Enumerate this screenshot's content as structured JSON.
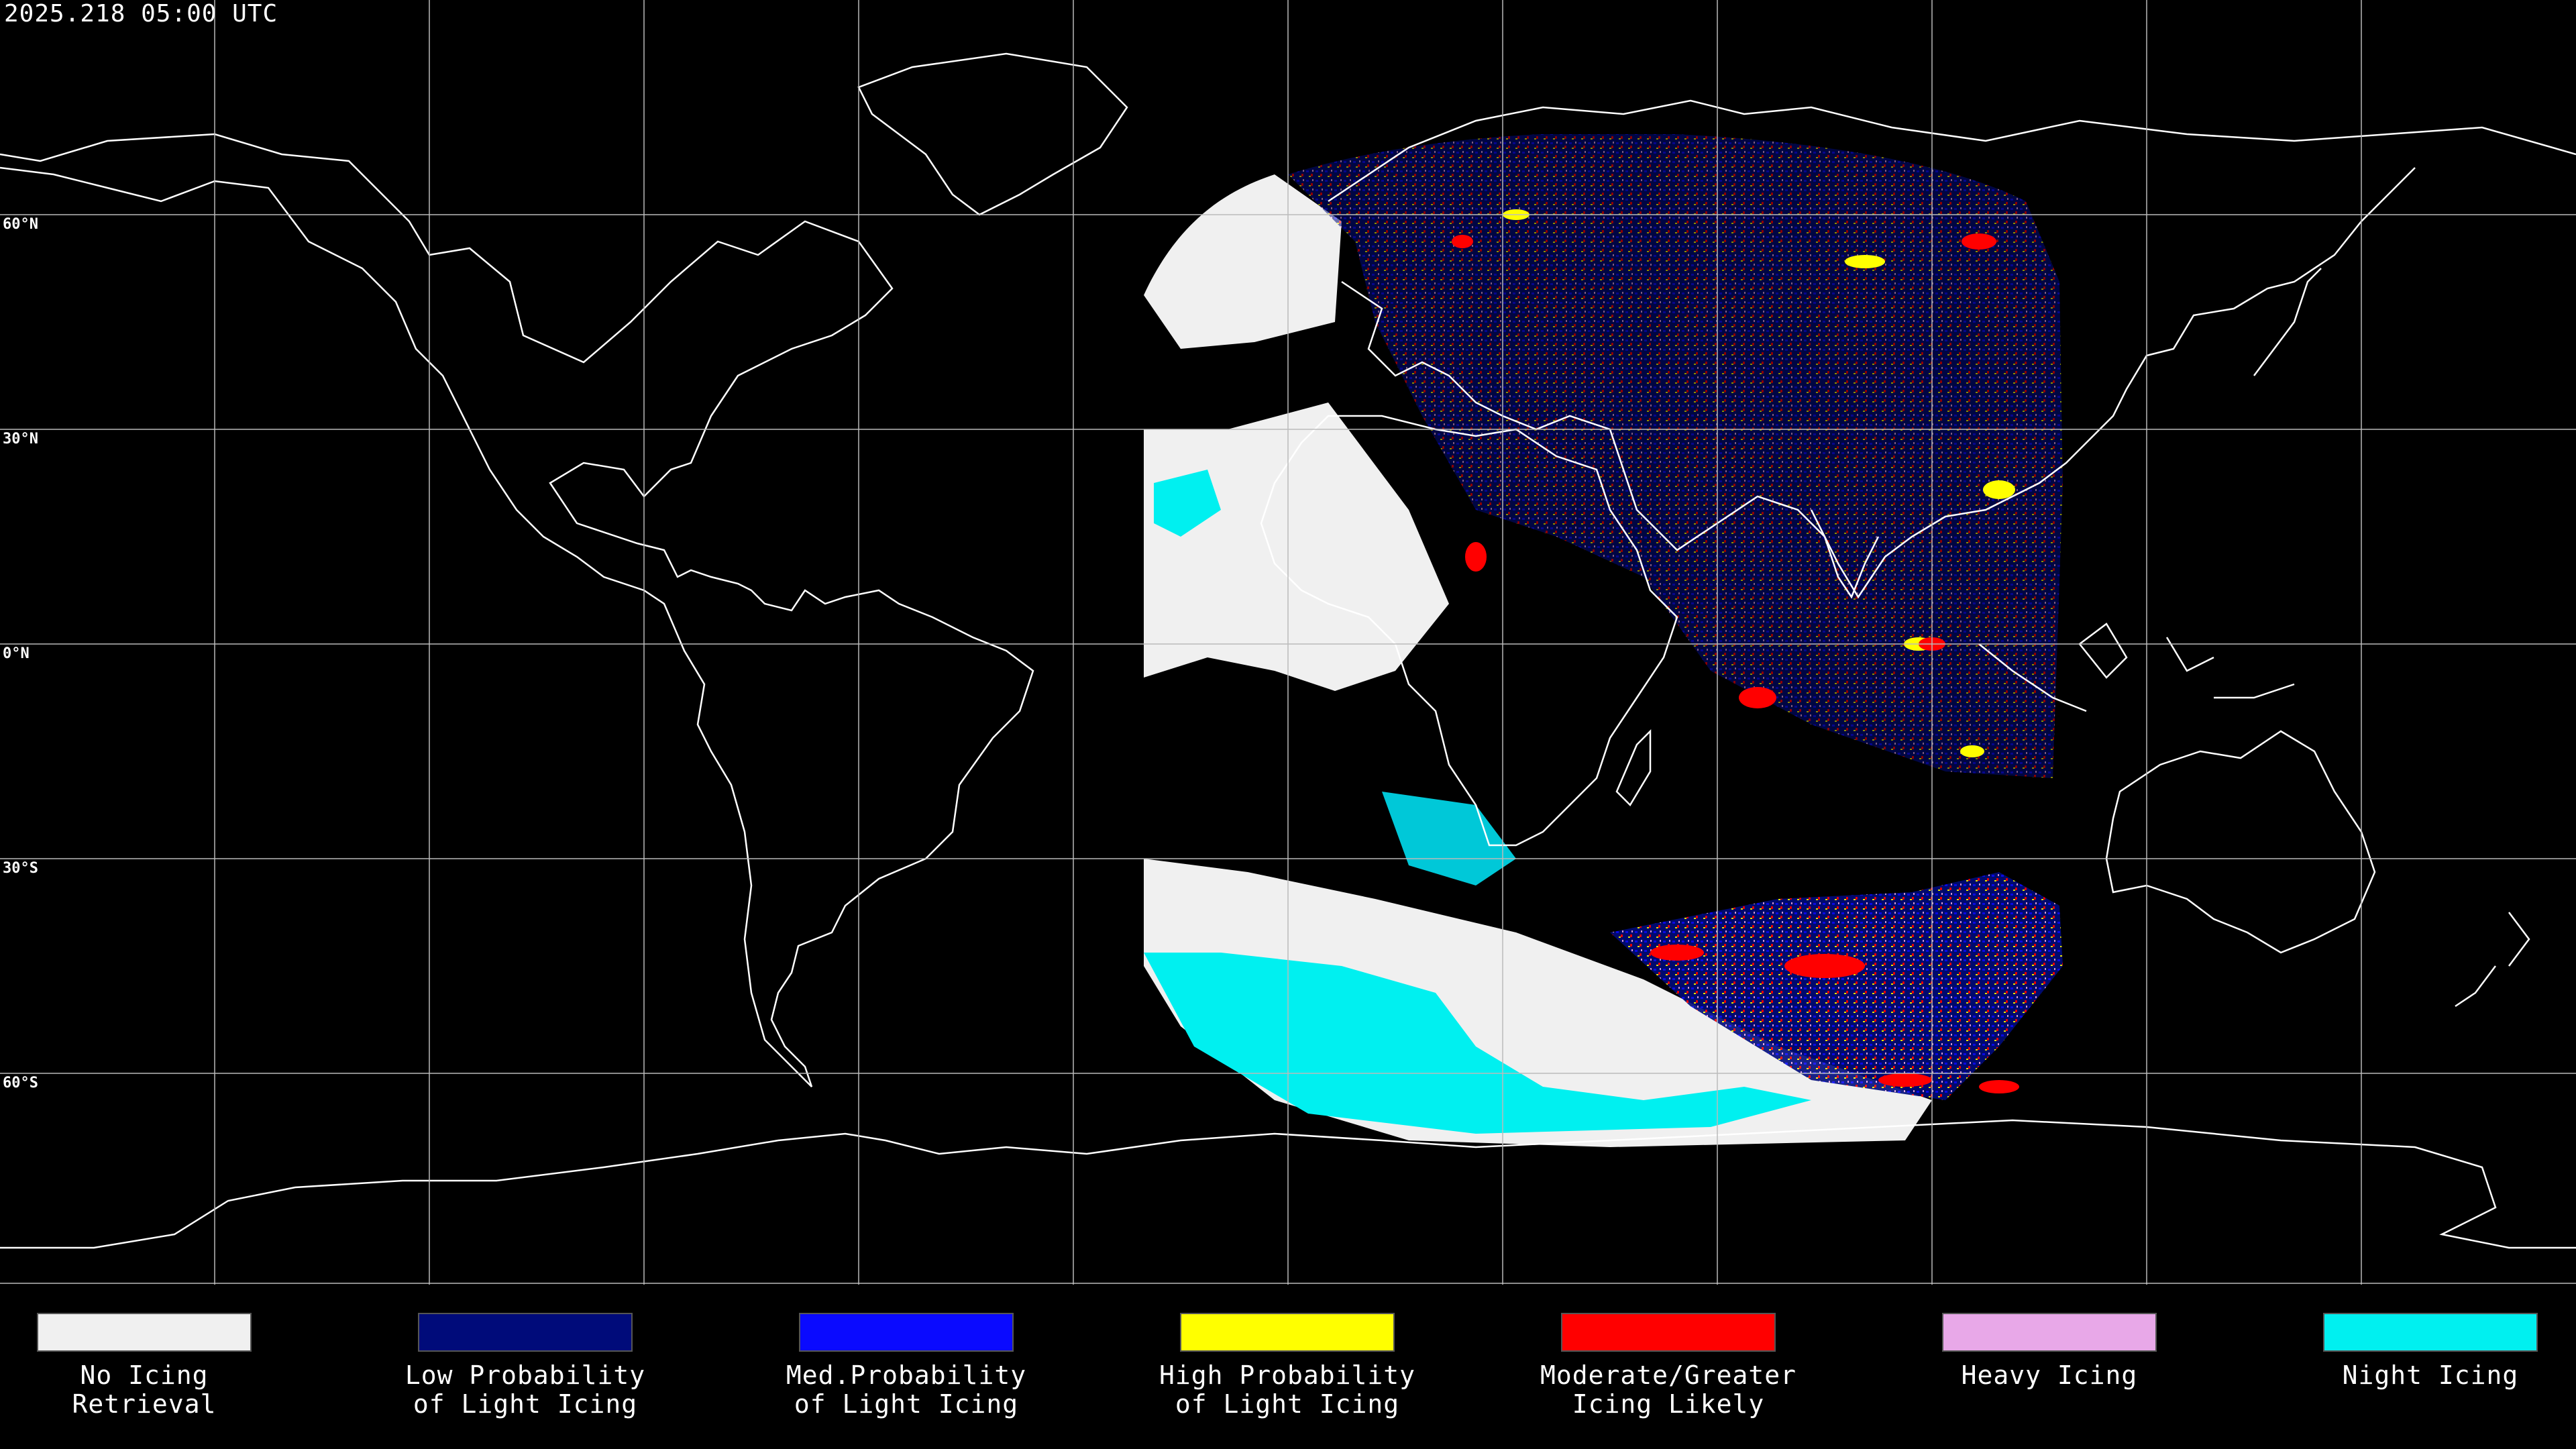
{
  "timestamp": "2025.218 05:00 UTC",
  "latitude_labels": [
    "60°N",
    "30°N",
    "0°N",
    "30°S",
    "60°S"
  ],
  "legend": [
    {
      "line1": "No Icing",
      "line2": "Retrieval",
      "color": "#f0f0f0"
    },
    {
      "line1": "Low Probability",
      "line2": "of Light Icing",
      "color": "#000b7a"
    },
    {
      "line1": "Med.Probability",
      "line2": "of Light Icing",
      "color": "#0a0aff"
    },
    {
      "line1": "High Probability",
      "line2": "of Light Icing",
      "color": "#ffff00"
    },
    {
      "line1": "Moderate/Greater",
      "line2": "Icing Likely",
      "color": "#ff0000"
    },
    {
      "line1": "Heavy Icing",
      "line2": "",
      "color": "#e8a8e8"
    },
    {
      "line1": "Night Icing",
      "line2": "",
      "color": "#00f0f0"
    }
  ],
  "colors": {
    "background": "#000000",
    "grid": "#bbbbbb",
    "coastline": "#ffffff",
    "no_icing": "#f0f0f0",
    "night_icing": "#00f0f0",
    "low": "#000b7a",
    "med": "#0a0aff",
    "high": "#ffff00",
    "moderate": "#ff0000",
    "heavy": "#e8a8e8"
  }
}
